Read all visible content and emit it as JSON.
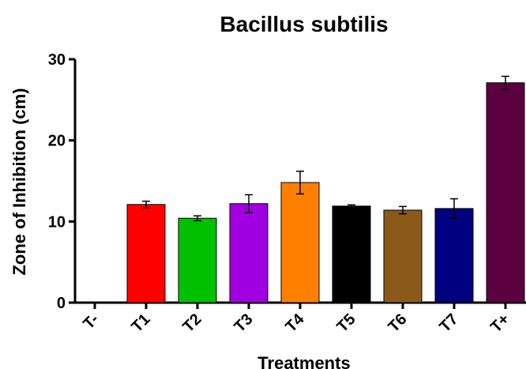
{
  "chart_data": {
    "type": "bar",
    "title": "Bacillus subtilis",
    "xlabel": "Treatments",
    "ylabel": "Zone of Inhibition (cm)",
    "ylim": [
      0,
      30
    ],
    "yticks": [
      0,
      10,
      20,
      30
    ],
    "categories": [
      "T-",
      "T1",
      "T2",
      "T3",
      "T4",
      "T5",
      "T6",
      "T7",
      "T+"
    ],
    "values": [
      0,
      12.1,
      10.4,
      12.2,
      14.8,
      11.9,
      11.4,
      11.6,
      27.1
    ],
    "errors": [
      0,
      0.4,
      0.3,
      1.1,
      1.4,
      0.15,
      0.45,
      1.2,
      0.8
    ],
    "colors": [
      "#ffffff",
      "#ff0000",
      "#00c000",
      "#a000e0",
      "#ff8000",
      "#000000",
      "#8b5a1b",
      "#000080",
      "#5c0040"
    ],
    "grid": false,
    "legend": "none"
  }
}
